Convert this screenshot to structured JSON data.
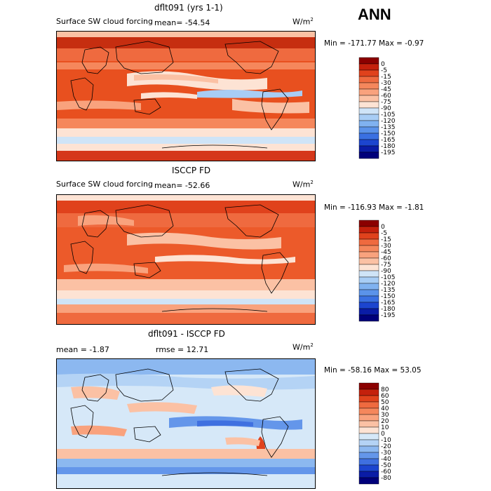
{
  "season": "ANN",
  "panels": [
    {
      "title": "dflt091 (yrs 1-1)",
      "variable": "Surface SW cloud forcing",
      "mean_text": "mean=  -54.54",
      "units_base": "W/m",
      "units_exp": "2",
      "minmax_text": "Min = -171.77 Max =   -0.97",
      "colorbar_labels": [
        "0",
        "-5",
        "-15",
        "-30",
        "-45",
        "-60",
        "-75",
        "-90",
        "-105",
        "-120",
        "-135",
        "-150",
        "-165",
        "-180",
        "-195"
      ],
      "colorbar_colors": [
        "#8b0000",
        "#c4200c",
        "#e0421c",
        "#ef6a3f",
        "#f5875c",
        "#f9a27d",
        "#fbc1a4",
        "#fde3d4",
        "#cfe4f7",
        "#a8cdf5",
        "#80b2f0",
        "#5b93ea",
        "#3a70e2",
        "#1c45cf",
        "#0a1ca6",
        "#00007a"
      ]
    },
    {
      "title": "ISCCP FD",
      "variable": "Surface SW cloud forcing",
      "mean_text": "mean=  -52.66",
      "units_base": "W/m",
      "units_exp": "2",
      "minmax_text": "Min = -116.93 Max =   -1.81",
      "colorbar_labels": [
        "0",
        "-5",
        "-15",
        "-30",
        "-45",
        "-60",
        "-75",
        "-90",
        "-105",
        "-120",
        "-135",
        "-150",
        "-165",
        "-180",
        "-195"
      ],
      "colorbar_colors": [
        "#8b0000",
        "#c4200c",
        "#e0421c",
        "#ef6a3f",
        "#f5875c",
        "#f9a27d",
        "#fbc1a4",
        "#fde3d4",
        "#cfe4f7",
        "#a8cdf5",
        "#80b2f0",
        "#5b93ea",
        "#3a70e2",
        "#1c45cf",
        "#0a1ca6",
        "#00007a"
      ]
    },
    {
      "title": "dflt091 - ISCCP FD",
      "mean_text": "mean =   -1.87",
      "rmse_text": "rmse =   12.71",
      "units_base": "W/m",
      "units_exp": "2",
      "minmax_text": "Min = -58.16 Max =  53.05",
      "colorbar_labels": [
        "80",
        "60",
        "50",
        "40",
        "30",
        "20",
        "10",
        "0",
        "-10",
        "-20",
        "-30",
        "-40",
        "-50",
        "-60",
        "-80"
      ],
      "colorbar_colors": [
        "#8b0000",
        "#c4200c",
        "#e0421c",
        "#ef6a3f",
        "#f5875c",
        "#f9a27d",
        "#fbc1a4",
        "#fde3d4",
        "#d6e8f8",
        "#b4d3f5",
        "#8cb8f0",
        "#6496ea",
        "#3f70e0",
        "#1c45cf",
        "#0a1ca6",
        "#00007a"
      ]
    }
  ]
}
